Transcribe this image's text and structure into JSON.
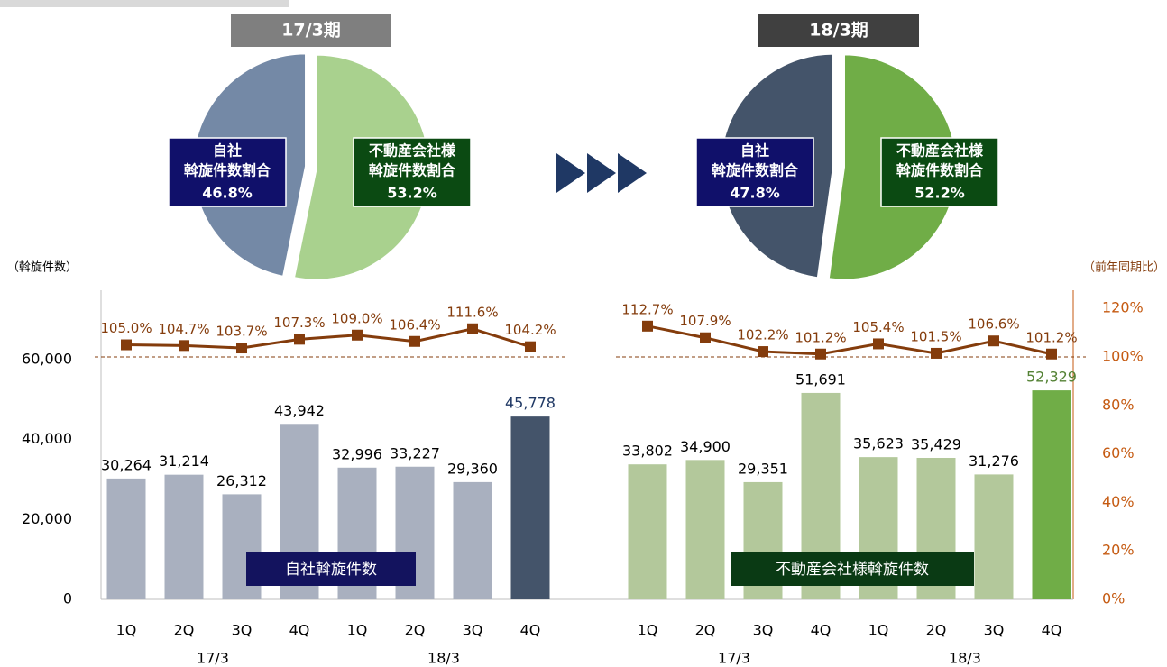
{
  "chart_data": [
    {
      "type": "pie",
      "title": "17/3期",
      "title_color": "#7f7f7f",
      "slices": [
        {
          "name": [
            "自社",
            "斡旋件数割合"
          ],
          "value": 46.8,
          "value_label": "46.8%",
          "color": "#7489a6",
          "label_color": "#10106a"
        },
        {
          "name": [
            "不動産会社様",
            "斡旋件数割合"
          ],
          "value": 53.2,
          "value_label": "53.2%",
          "color": "#a9d18e",
          "label_color": "#0b4a12"
        }
      ]
    },
    {
      "type": "pie",
      "title": "18/3期",
      "title_color": "#404040",
      "slices": [
        {
          "name": [
            "自社",
            "斡旋件数割合"
          ],
          "value": 47.8,
          "value_label": "47.8%",
          "color": "#44546a",
          "label_color": "#10106a"
        },
        {
          "name": [
            "不動産会社様",
            "斡旋件数割合"
          ],
          "value": 52.2,
          "value_label": "52.2%",
          "color": "#70ad47",
          "label_color": "#0b4a12"
        }
      ]
    },
    {
      "type": "bar_line",
      "y_label": "（斡旋件数）",
      "categories": [
        "1Q",
        "2Q",
        "3Q",
        "4Q",
        "1Q",
        "2Q",
        "3Q",
        "4Q"
      ],
      "groups": [
        "17/3",
        "18/3"
      ],
      "ylim": [
        0,
        77400
      ],
      "yticks": [
        0,
        {
          "value": 20000,
          "label": "20,000"
        },
        {
          "value": 40000,
          "label": "40,000"
        },
        {
          "value": 60000,
          "label": "60,000"
        }
      ],
      "y2lim": [
        0,
        127.5
      ],
      "y2_reference": 100,
      "series": [
        {
          "name": "自社斡旋件数",
          "type": "bar",
          "legend_color": "#13135e",
          "colors": [
            "#a9b0bf",
            "#a9b0bf",
            "#a9b0bf",
            "#a9b0bf",
            "#a9b0bf",
            "#a9b0bf",
            "#a9b0bf",
            "#44546a"
          ],
          "label_colors": [
            "#000000",
            "#000000",
            "#000000",
            "#000000",
            "#000000",
            "#000000",
            "#000000",
            "#1f3864"
          ],
          "values": [
            30264,
            31214,
            26312,
            43942,
            32996,
            33227,
            29360,
            45778
          ],
          "value_labels": [
            "30,264",
            "31,214",
            "26,312",
            "43,942",
            "32,996",
            "33,227",
            "29,360",
            "45,778"
          ]
        },
        {
          "type": "line",
          "axis": "y2",
          "color": "#843c0c",
          "values": [
            105.0,
            104.7,
            103.7,
            107.3,
            109.0,
            106.4,
            111.6,
            104.2
          ],
          "value_labels": [
            "105.0%",
            "104.7%",
            "103.7%",
            "107.3%",
            "109.0%",
            "106.4%",
            "111.6%",
            "104.2%"
          ]
        }
      ]
    },
    {
      "type": "bar_line",
      "y2_label": "（前年同期比）",
      "categories": [
        "1Q",
        "2Q",
        "3Q",
        "4Q",
        "1Q",
        "2Q",
        "3Q",
        "4Q"
      ],
      "groups": [
        "17/3",
        "18/3"
      ],
      "ylim": [
        0,
        77400
      ],
      "y2lim": [
        0,
        127.5
      ],
      "y2ticks": [
        {
          "value": 0,
          "label": "0%"
        },
        {
          "value": 20,
          "label": "20%"
        },
        {
          "value": 40,
          "label": "40%"
        },
        {
          "value": 60,
          "label": "60%"
        },
        {
          "value": 80,
          "label": "80%"
        },
        {
          "value": 100,
          "label": "100%"
        },
        {
          "value": 120,
          "label": "120%"
        }
      ],
      "y2_reference": 100,
      "series": [
        {
          "name": "不動産会社様斡旋件数",
          "type": "bar",
          "legend_color": "#0a3a14",
          "colors": [
            "#b3c89b",
            "#b3c89b",
            "#b3c89b",
            "#b3c89b",
            "#b3c89b",
            "#b3c89b",
            "#b3c89b",
            "#70ad47"
          ],
          "label_colors": [
            "#000000",
            "#000000",
            "#000000",
            "#000000",
            "#000000",
            "#000000",
            "#000000",
            "#548235"
          ],
          "values": [
            33802,
            34900,
            29351,
            51691,
            35623,
            35429,
            31276,
            52329
          ],
          "value_labels": [
            "33,802",
            "34,900",
            "29,351",
            "51,691",
            "35,623",
            "35,429",
            "31,276",
            "52,329"
          ]
        },
        {
          "type": "line",
          "axis": "y2",
          "color": "#843c0c",
          "values": [
            112.7,
            107.9,
            102.2,
            101.2,
            105.4,
            101.5,
            106.6,
            101.2
          ],
          "value_labels": [
            "112.7%",
            "107.9%",
            "102.2%",
            "101.2%",
            "105.4%",
            "101.5%",
            "106.6%",
            "101.2%"
          ]
        }
      ]
    }
  ]
}
